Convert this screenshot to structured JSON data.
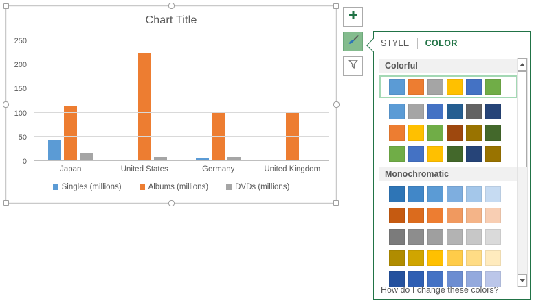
{
  "chart_data": {
    "type": "bar",
    "title": "Chart Title",
    "categories": [
      "Japan",
      "United States",
      "Germany",
      "United Kingdom"
    ],
    "series": [
      {
        "name": "Singles (millions)",
        "color": "#5B9BD5",
        "values": [
          44,
          2,
          7,
          3
        ]
      },
      {
        "name": "Albums (millions)",
        "color": "#ED7D31",
        "values": [
          115,
          225,
          99,
          100
        ]
      },
      {
        "name": "DVDs (millions)",
        "color": "#A5A5A5",
        "values": [
          17,
          9,
          9,
          3
        ]
      }
    ],
    "xlabel": "",
    "ylabel": "",
    "ylim": [
      0,
      250
    ],
    "yticks": [
      0,
      50,
      100,
      150,
      200,
      250
    ],
    "grid": true,
    "legend_position": "bottom"
  },
  "chart_buttons": [
    {
      "id": "add-chart-element",
      "icon": "plus-icon",
      "selected": false
    },
    {
      "id": "chart-styles",
      "icon": "paintbrush-icon",
      "selected": true
    },
    {
      "id": "chart-filters",
      "icon": "funnel-icon",
      "selected": false
    }
  ],
  "panel": {
    "tabs": [
      {
        "label": "STYLE",
        "active": false
      },
      {
        "label": "COLOR",
        "active": true
      }
    ],
    "accent_green": "#217346",
    "selection_green": "#A3D8B4",
    "sections": [
      {
        "header": "Colorful",
        "rows": [
          {
            "name": "Colorful Palette 1",
            "selected": true,
            "colors": [
              "#5B9BD5",
              "#ED7D31",
              "#A5A5A5",
              "#FFC000",
              "#4472C4",
              "#70AD47"
            ]
          },
          {
            "name": "Colorful Palette 2",
            "selected": false,
            "colors": [
              "#5B9BD5",
              "#A5A5A5",
              "#4472C4",
              "#255E91",
              "#636363",
              "#264478"
            ]
          },
          {
            "name": "Colorful Palette 3",
            "selected": false,
            "colors": [
              "#ED7D31",
              "#FFC000",
              "#70AD47",
              "#9E480E",
              "#997300",
              "#43682B"
            ]
          },
          {
            "name": "Colorful Palette 4",
            "selected": false,
            "colors": [
              "#70AD47",
              "#4472C4",
              "#FFC000",
              "#43682B",
              "#264478",
              "#997300"
            ]
          }
        ]
      },
      {
        "header": "Monochromatic",
        "rows": [
          {
            "name": "Monochromatic Palette 1",
            "selected": false,
            "colors": [
              "#2E75B6",
              "#4187C8",
              "#5B9BD5",
              "#7EAEDF",
              "#A4C7EA",
              "#C6DBF2"
            ]
          },
          {
            "name": "Monochromatic Palette 2",
            "selected": false,
            "colors": [
              "#C55A11",
              "#DB6B1D",
              "#ED7D31",
              "#F0995F",
              "#F4B488",
              "#F8CEB3"
            ]
          },
          {
            "name": "Monochromatic Palette 3",
            "selected": false,
            "colors": [
              "#7B7B7B",
              "#8D8D8D",
              "#9F9F9F",
              "#B3B3B3",
              "#C7C7C7",
              "#DADADA"
            ]
          },
          {
            "name": "Monochromatic Palette 4",
            "selected": false,
            "colors": [
              "#B08C00",
              "#D0A500",
              "#FFC000",
              "#FFCC49",
              "#FFDC85",
              "#FFEBBE"
            ]
          },
          {
            "name": "Monochromatic Palette 5",
            "selected": false,
            "colors": [
              "#24519E",
              "#2F5FB3",
              "#4472C4",
              "#6C8DD1",
              "#93A9DD",
              "#BBC6E9"
            ]
          }
        ]
      }
    ],
    "footer_link": "How do I change these colors?"
  }
}
